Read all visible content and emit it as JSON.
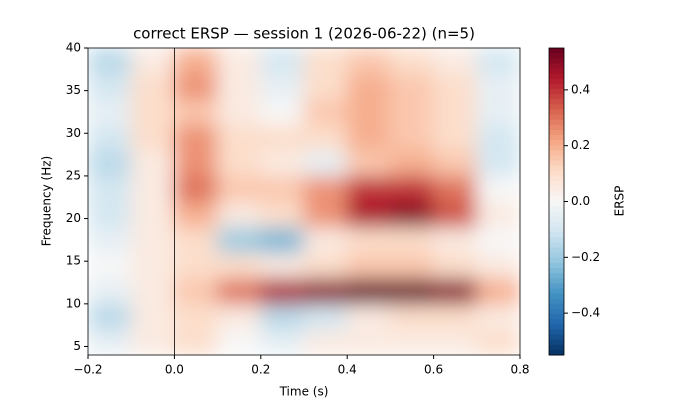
{
  "chart_data": {
    "type": "heatmap",
    "title": "correct ERSP — session 1 (2026-06-22) (n=5)",
    "x_label": "Time (s)",
    "y_label": "Frequency (Hz)",
    "colorbar_label": "ERSP",
    "x": [
      -0.15,
      -0.05,
      0.05,
      0.15,
      0.25,
      0.35,
      0.45,
      0.55,
      0.65,
      0.75
    ],
    "y": [
      5.5,
      8.5,
      11.5,
      14.5,
      17.5,
      20.5,
      23.5,
      26.5,
      29.5,
      32.5,
      35.5,
      38.5
    ],
    "z": [
      [
        -0.05,
        0.05,
        0.1,
        0.0,
        -0.05,
        0.05,
        0.05,
        0.05,
        0.05,
        0.1
      ],
      [
        -0.15,
        0.05,
        0.1,
        0.05,
        -0.15,
        -0.1,
        0.05,
        0.1,
        0.1,
        0.05
      ],
      [
        -0.05,
        0.05,
        0.15,
        0.3,
        0.45,
        0.5,
        0.55,
        0.55,
        0.5,
        0.2
      ],
      [
        0.0,
        0.05,
        0.1,
        0.1,
        0.05,
        0.1,
        0.15,
        0.15,
        0.1,
        0.05
      ],
      [
        -0.05,
        0.05,
        0.1,
        -0.2,
        -0.25,
        0.05,
        0.1,
        0.1,
        0.05,
        0.0
      ],
      [
        -0.1,
        0.05,
        0.2,
        0.05,
        0.1,
        0.25,
        0.45,
        0.5,
        0.35,
        0.05
      ],
      [
        -0.1,
        0.05,
        0.3,
        0.15,
        0.15,
        0.25,
        0.4,
        0.4,
        0.3,
        0.0
      ],
      [
        -0.15,
        0.05,
        0.25,
        0.1,
        0.05,
        -0.05,
        0.15,
        0.2,
        0.15,
        -0.1
      ],
      [
        -0.1,
        0.1,
        0.25,
        0.1,
        0.1,
        0.1,
        0.2,
        0.15,
        0.1,
        -0.1
      ],
      [
        -0.05,
        0.1,
        0.15,
        0.05,
        0.0,
        0.15,
        0.2,
        0.15,
        0.1,
        -0.05
      ],
      [
        -0.1,
        0.1,
        0.25,
        0.05,
        -0.05,
        0.1,
        0.2,
        0.15,
        0.1,
        -0.05
      ],
      [
        -0.15,
        0.05,
        0.2,
        0.05,
        -0.1,
        0.1,
        0.15,
        0.1,
        0.05,
        -0.1
      ]
    ],
    "xlim": [
      -0.2,
      0.8
    ],
    "xticks": [
      {
        "value": -0.2,
        "label": "−0.2"
      },
      {
        "value": 0,
        "label": "0.0"
      },
      0.2,
      0.4,
      0.6,
      0.8
    ],
    "ylim": [
      4,
      40
    ],
    "yticks": [
      5,
      10,
      15,
      20,
      25,
      30,
      35,
      40
    ],
    "clim": [
      -0.55,
      0.55
    ],
    "cticks": [
      {
        "value": -0.4,
        "label": "−0.4"
      },
      {
        "value": -0.2,
        "label": "−0.2"
      },
      {
        "value": 0,
        "label": "0.0"
      },
      0.2,
      0.4
    ],
    "vline": 0,
    "colormap": [
      "#053061",
      "#2166ac",
      "#4393c3",
      "#92c5de",
      "#d1e5f0",
      "#f7f7f7",
      "#fddbc7",
      "#f4a582",
      "#d6604d",
      "#b2182b",
      "#67001f"
    ]
  }
}
